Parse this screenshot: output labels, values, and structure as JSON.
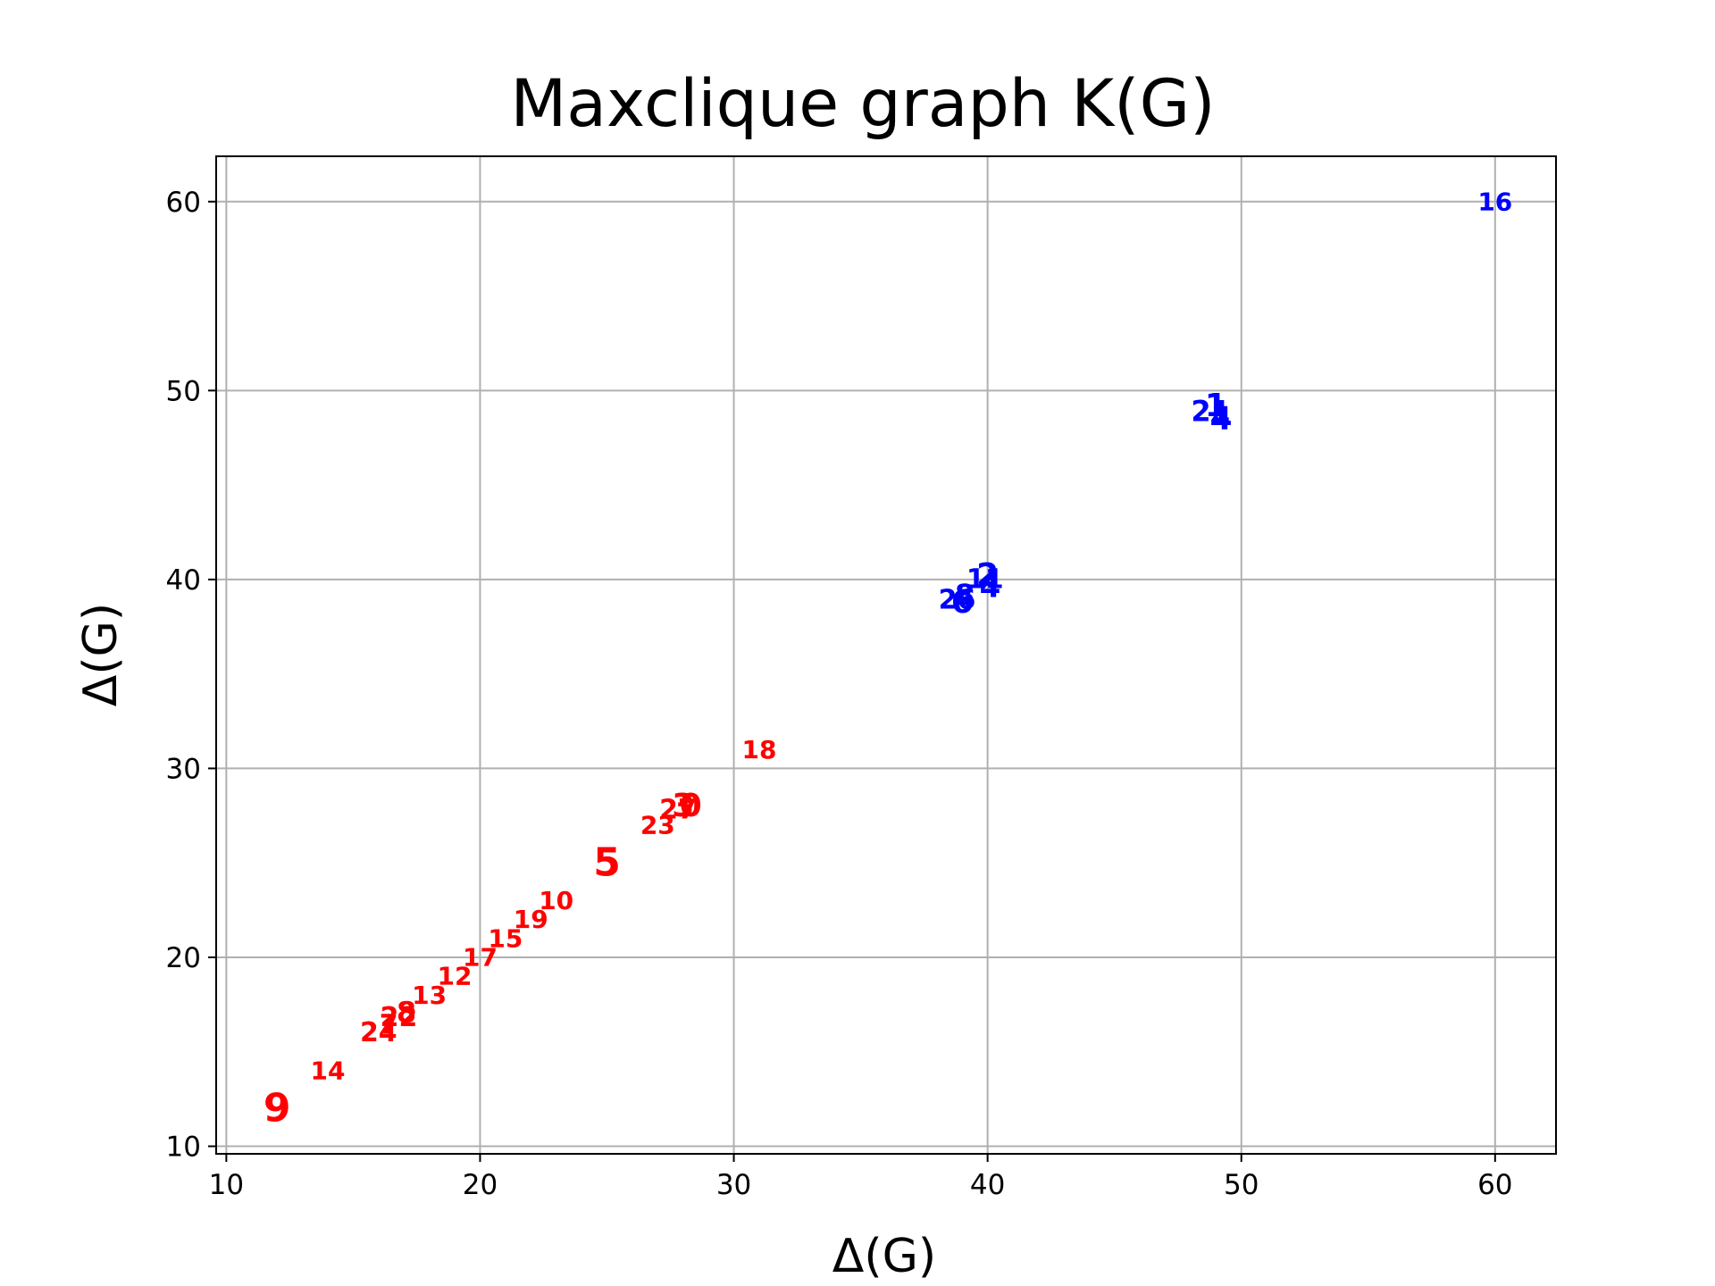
{
  "chart_data": {
    "type": "scatter",
    "title": "Maxclique graph K(G)",
    "xlabel": "Δ(G)",
    "ylabel": "Δ(G)",
    "xlim": [
      9.6,
      62.4
    ],
    "ylim": [
      9.6,
      62.4
    ],
    "xticks": [
      10,
      20,
      30,
      40,
      50,
      60
    ],
    "yticks": [
      10,
      20,
      30,
      40,
      50,
      60
    ],
    "grid": true,
    "marker": "text labels",
    "series": [
      {
        "color": "#ff0000",
        "points": [
          {
            "label": "9",
            "x": 12.0,
            "y": 12.0,
            "size": 44
          },
          {
            "label": "14",
            "x": 14.0,
            "y": 14.0,
            "size": 28
          },
          {
            "label": "24",
            "x": 16.0,
            "y": 16.0,
            "size": 30
          },
          {
            "label": "7",
            "x": 16.4,
            "y": 16.4,
            "size": 30
          },
          {
            "label": "22",
            "x": 16.8,
            "y": 16.8,
            "size": 30
          },
          {
            "label": "8",
            "x": 17.1,
            "y": 17.1,
            "size": 32
          },
          {
            "label": "13",
            "x": 18.0,
            "y": 18.0,
            "size": 28
          },
          {
            "label": "12",
            "x": 19.0,
            "y": 19.0,
            "size": 28
          },
          {
            "label": "17",
            "x": 20.0,
            "y": 20.0,
            "size": 28
          },
          {
            "label": "15",
            "x": 21.0,
            "y": 21.0,
            "size": 28
          },
          {
            "label": "19",
            "x": 22.0,
            "y": 22.0,
            "size": 28
          },
          {
            "label": "10",
            "x": 23.0,
            "y": 23.0,
            "size": 28
          },
          {
            "label": "5",
            "x": 25.0,
            "y": 25.0,
            "size": 44
          },
          {
            "label": "23",
            "x": 27.0,
            "y": 27.0,
            "size": 28
          },
          {
            "label": "27",
            "x": 27.8,
            "y": 27.8,
            "size": 30
          },
          {
            "label": "3",
            "x": 28.0,
            "y": 28.0,
            "size": 36
          },
          {
            "label": "0",
            "x": 28.3,
            "y": 28.0,
            "size": 36
          },
          {
            "label": "18",
            "x": 31.0,
            "y": 31.0,
            "size": 28
          }
        ]
      },
      {
        "color": "#0000ff",
        "points": [
          {
            "label": "26",
            "x": 38.8,
            "y": 38.9,
            "size": 30
          },
          {
            "label": "6",
            "x": 39.0,
            "y": 38.8,
            "size": 36
          },
          {
            "label": "8",
            "x": 39.1,
            "y": 39.2,
            "size": 32
          },
          {
            "label": "11",
            "x": 39.9,
            "y": 40.0,
            "size": 30
          },
          {
            "label": "2",
            "x": 40.0,
            "y": 40.2,
            "size": 36
          },
          {
            "label": "4",
            "x": 40.1,
            "y": 39.6,
            "size": 34
          },
          {
            "label": "21",
            "x": 48.8,
            "y": 48.9,
            "size": 32
          },
          {
            "label": "1",
            "x": 49.0,
            "y": 49.2,
            "size": 36
          },
          {
            "label": "4",
            "x": 49.2,
            "y": 48.5,
            "size": 36
          },
          {
            "label": "16",
            "x": 60.0,
            "y": 60.0,
            "size": 28
          }
        ]
      }
    ]
  }
}
